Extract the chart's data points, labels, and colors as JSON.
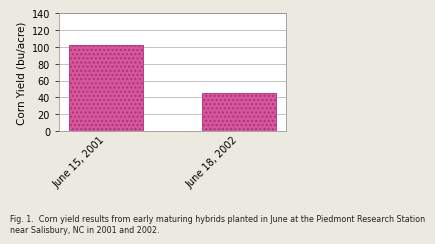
{
  "categories": [
    "June 15, 2001",
    "June 18, 2002"
  ],
  "values": [
    102,
    45
  ],
  "bar_color": "#d4589a",
  "ylabel": "Corn Yield (bu/acre)",
  "ylim": [
    0,
    140
  ],
  "yticks": [
    0,
    20,
    40,
    60,
    80,
    100,
    120,
    140
  ],
  "caption_line1": "Fig. 1.  Corn yield results from early maturing hybrids planted in June at the Piedmont Research Station",
  "caption_line2": "near Salisbury, NC in 2001 and 2002.",
  "caption_fontsize": 5.8,
  "figure_bg_color": "#ece9e0",
  "plot_bg_color": "#ffffff",
  "bar_width": 0.55,
  "tick_label_fontsize": 7,
  "ylabel_fontsize": 7.5,
  "ytick_fontsize": 7
}
